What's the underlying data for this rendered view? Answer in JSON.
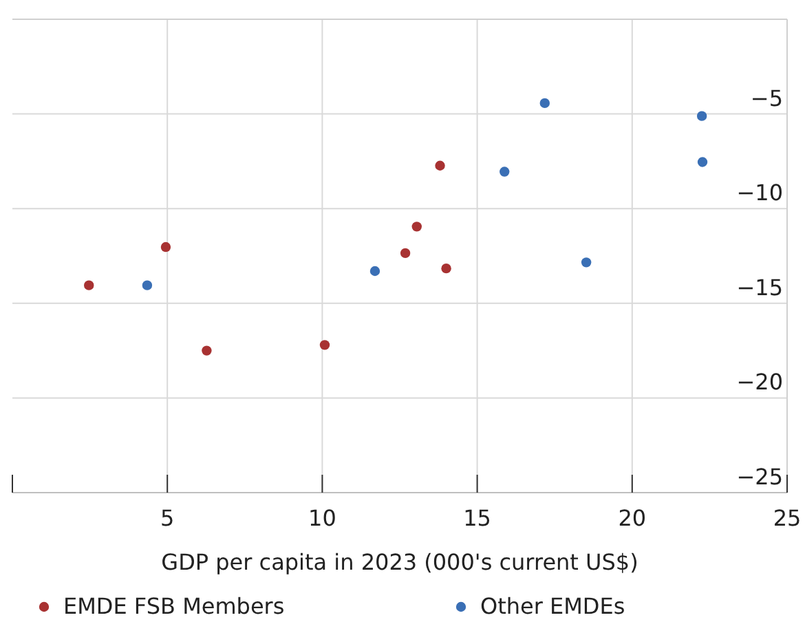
{
  "chart_data": {
    "type": "scatter",
    "xlabel": "GDP per capita in 2023 (000's current US$)",
    "xlim": [
      0,
      25
    ],
    "xticks": [
      5,
      10,
      15,
      20,
      25
    ],
    "ylim": [
      -25,
      0
    ],
    "yticks": [
      -5,
      -10,
      -15,
      -20,
      -25
    ],
    "grid": true,
    "legend": "bottom",
    "marker": "circle",
    "series": [
      {
        "name": "EMDE FSB Members",
        "color": "#a83232",
        "x": [
          2.47,
          4.95,
          6.27,
          10.08,
          12.68,
          13.05,
          13.8,
          14.0
        ],
        "values": [
          -14.05,
          -12.03,
          -17.5,
          -17.2,
          -12.35,
          -10.95,
          -7.73,
          -13.16
        ]
      },
      {
        "name": "Other EMDEs",
        "color": "#3a6fb5",
        "x": [
          4.35,
          11.7,
          15.88,
          17.18,
          18.52,
          22.25,
          22.27
        ],
        "values": [
          -14.05,
          -13.3,
          -8.05,
          -4.43,
          -12.84,
          -5.11,
          -7.54
        ]
      }
    ]
  }
}
